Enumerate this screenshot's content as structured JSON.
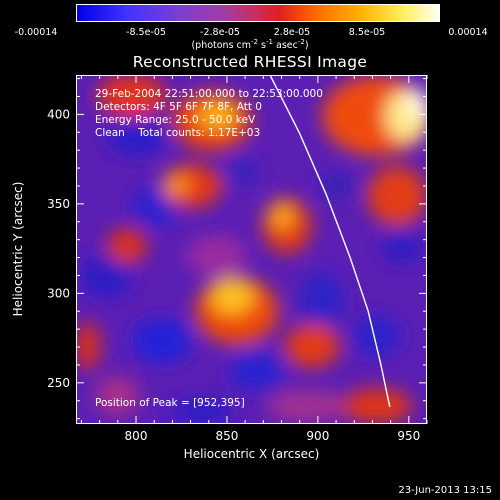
{
  "colorbar": {
    "ticks": [
      "-0.00014",
      "-8.5e-05",
      "-2.8e-05",
      "2.8e-05",
      "8.5e-05",
      "0.00014"
    ],
    "units_main": "(photons cm",
    "units_sup1": "-2",
    "units_mid": " s",
    "units_sup2": "-1",
    "units_end": " asec",
    "units_sup3": "-2",
    "units_close": ")"
  },
  "chart_data": {
    "type": "heatmap",
    "title": "Reconstructed RHESSI Image",
    "xlabel": "Heliocentric X (arcsec)",
    "ylabel": "Heliocentric Y (arcsec)",
    "xlim": [
      767,
      960
    ],
    "ylim": [
      227,
      422
    ],
    "xticks": [
      800,
      850,
      900,
      950
    ],
    "yticks": [
      250,
      300,
      350,
      400
    ],
    "colorbar_range": [
      -0.00014,
      0.00014
    ],
    "limb_curve": [
      [
        874,
        422
      ],
      [
        890,
        390
      ],
      [
        905,
        355
      ],
      [
        918,
        320
      ],
      [
        928,
        290
      ],
      [
        935,
        260
      ],
      [
        940,
        236
      ]
    ],
    "peak_position": [
      952,
      395
    ],
    "total_counts": 1170,
    "energy_range_kev": [
      25.0,
      50.0
    ]
  },
  "info": {
    "time_range": "29-Feb-2004 22:51:00.000 to 22:53:00.000",
    "detectors": "Detectors: 4F 5F 6F 7F 8F, Att 0",
    "energy": "Energy Range: 25.0 - 50.0 keV",
    "clean": "Clean    Total counts: 1.17E+03",
    "peak": "Position of Peak = [952,395]"
  },
  "footer": {
    "date": "23-Jun-2013 13:15"
  }
}
